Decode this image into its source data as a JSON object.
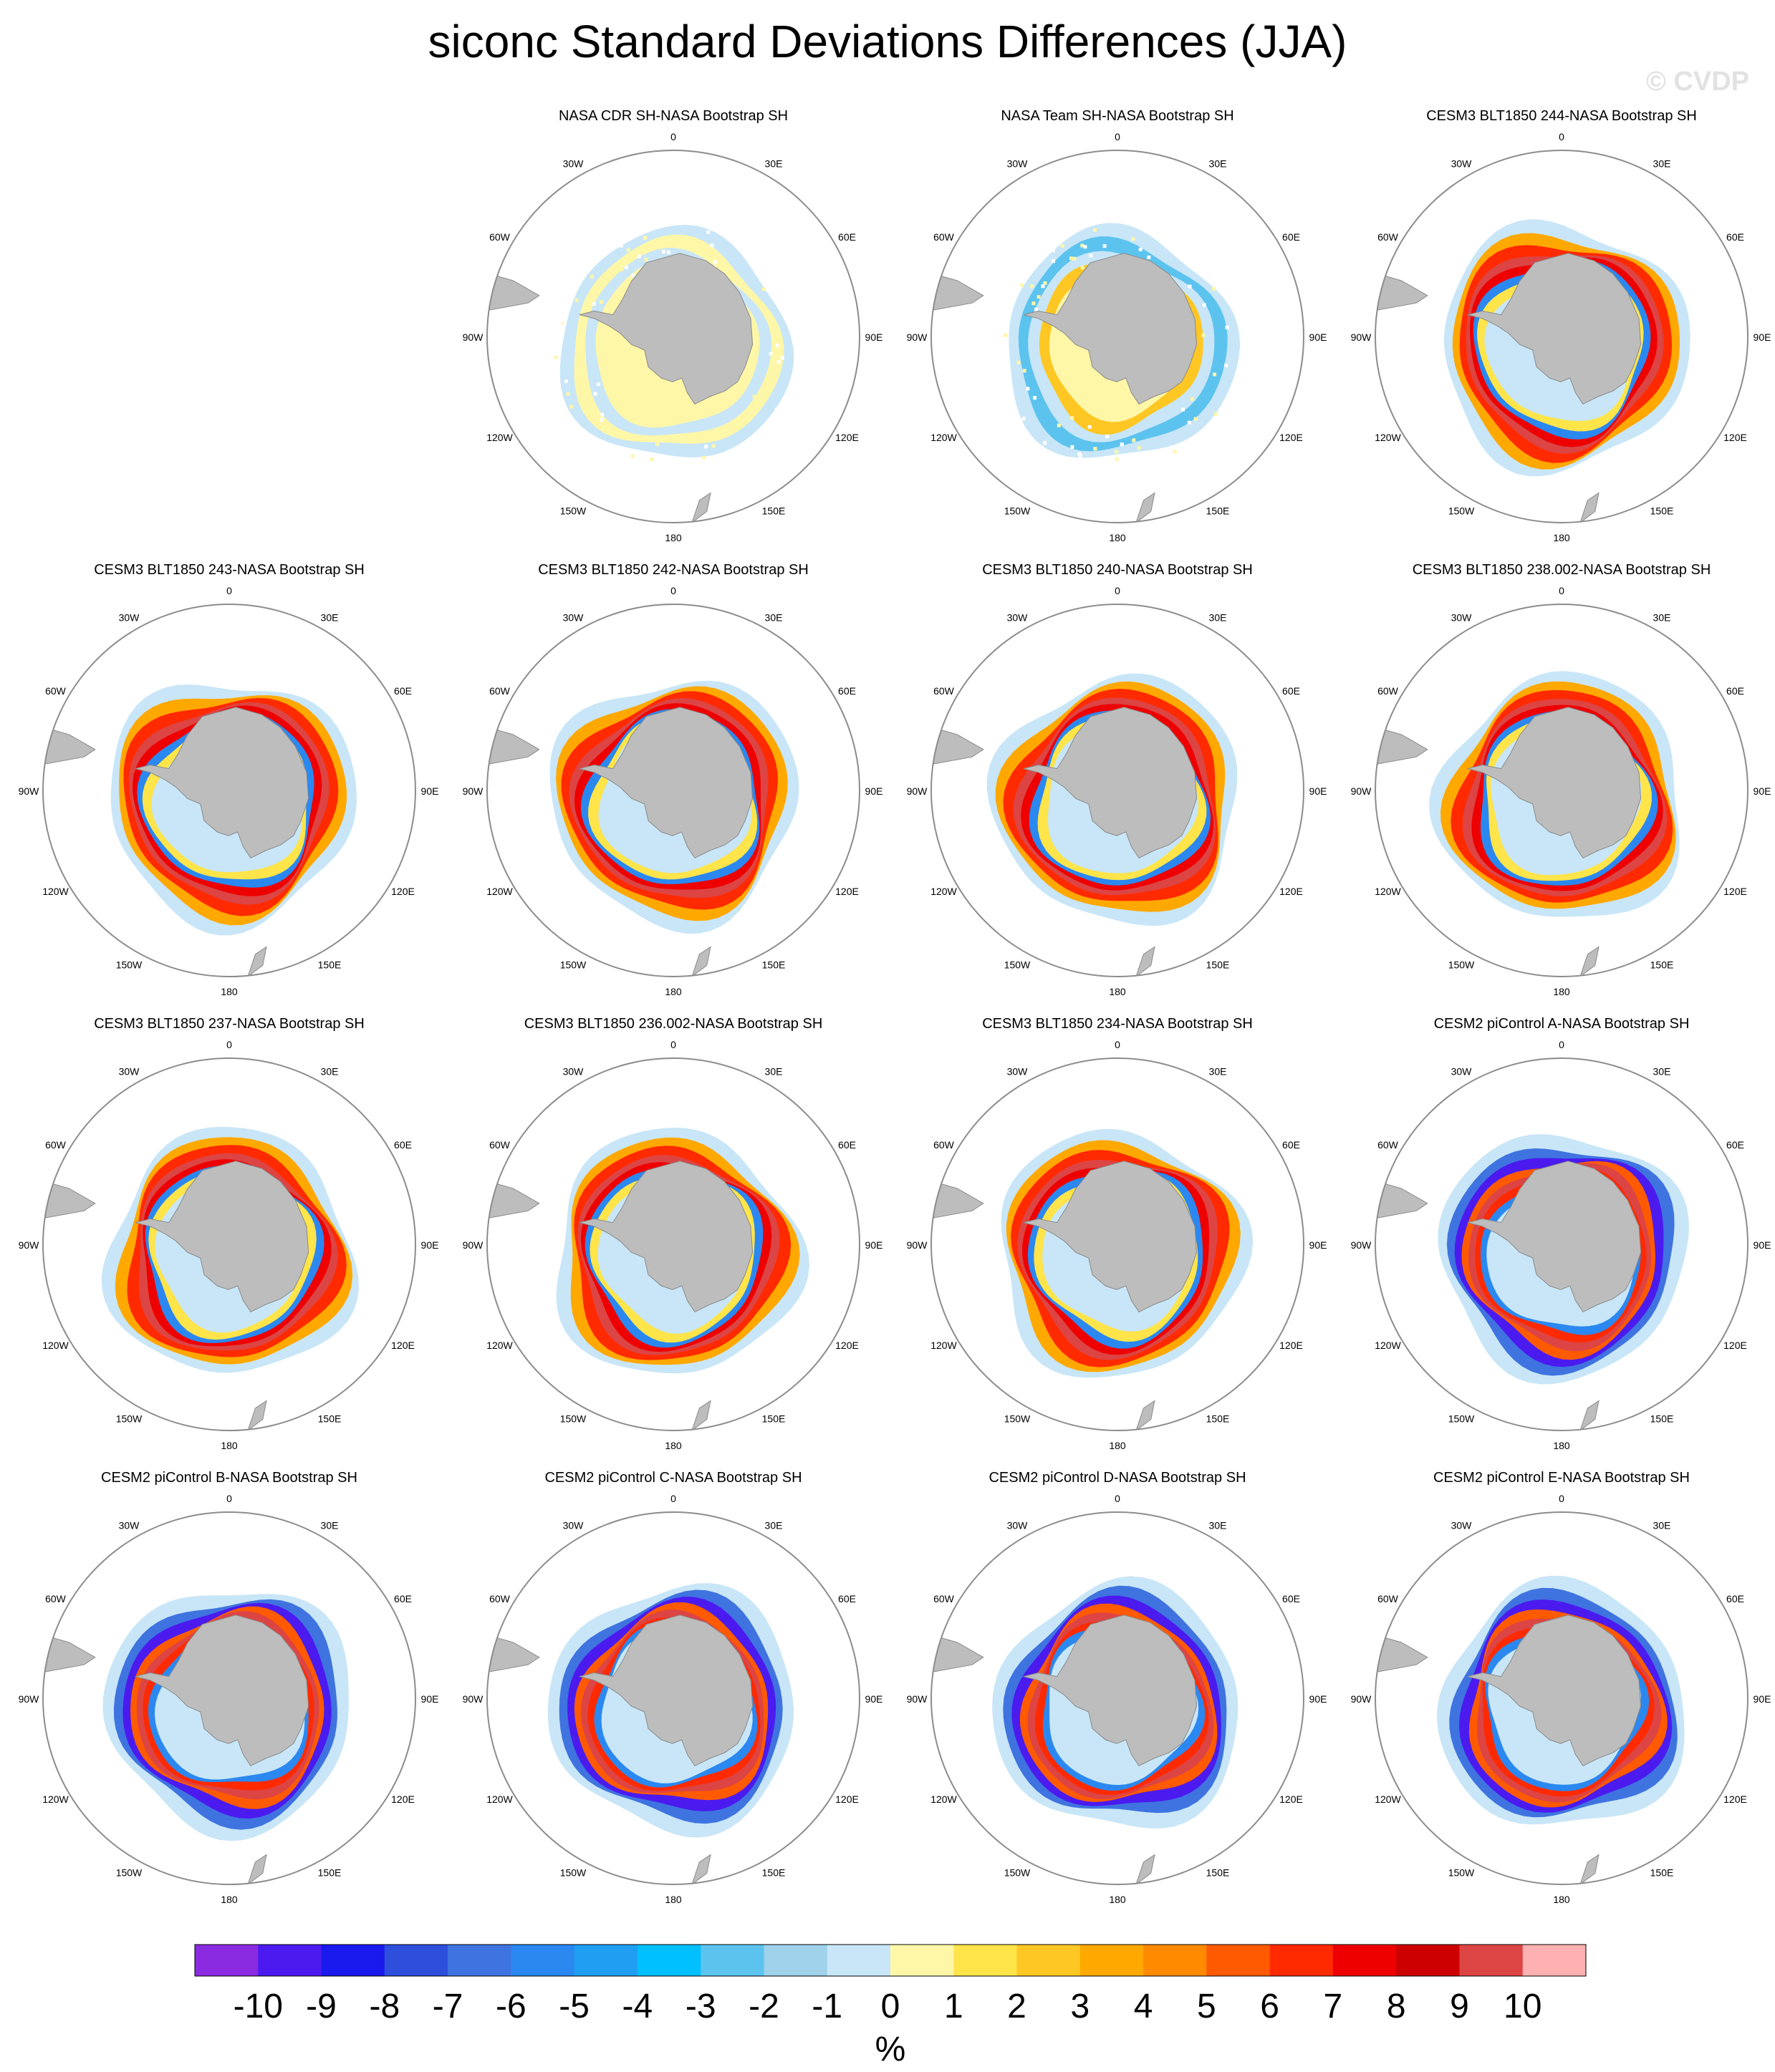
{
  "title": "siconc Standard Deviations Differences (JJA)",
  "watermark": "© CVDP",
  "colors": {
    "land": "#bdbdbd",
    "circle": "#8c8c8c"
  },
  "chart_data": {
    "type": "heatmap",
    "projection": "south-polar-stereographic",
    "variable": "siconc",
    "season": "JJA",
    "longitude_labels": [
      "0",
      "30E",
      "60E",
      "90E",
      "120E",
      "150E",
      "180",
      "150W",
      "120W",
      "90W",
      "60W",
      "30W"
    ],
    "colorbar": {
      "unit": "%",
      "tick_labels": [
        "-10",
        "-9",
        "-8",
        "-7",
        "-6",
        "-5",
        "-4",
        "-3",
        "-2",
        "-1",
        "0",
        "1",
        "2",
        "3",
        "4",
        "5",
        "6",
        "7",
        "8",
        "9",
        "10"
      ],
      "colors": [
        "#8a2be2",
        "#4b1aef",
        "#1a1aee",
        "#2e4fdc",
        "#3f73e0",
        "#2b88f0",
        "#1f9ef2",
        "#00bfff",
        "#5cc3ef",
        "#a0d2ec",
        "#c8e6f7",
        "#fff7a8",
        "#ffe44a",
        "#ffc724",
        "#ffa800",
        "#ff8a00",
        "#ff5a00",
        "#ff2a00",
        "#ee0000",
        "#cc0000",
        "#dd4444",
        "#ffb0b0"
      ]
    },
    "panels": [
      {
        "title": "NASA CDR SH-NASA Bootstrap SH",
        "pattern": "cdr"
      },
      {
        "title": "NASA Team SH-NASA Bootstrap SH",
        "pattern": "team"
      },
      {
        "title": "CESM3 BLT1850 244-NASA Bootstrap SH",
        "pattern": "model"
      },
      {
        "title": "CESM3 BLT1850 243-NASA Bootstrap SH",
        "pattern": "model"
      },
      {
        "title": "CESM3 BLT1850 242-NASA Bootstrap SH",
        "pattern": "model"
      },
      {
        "title": "CESM3 BLT1850 240-NASA Bootstrap SH",
        "pattern": "model"
      },
      {
        "title": "CESM3 BLT1850 238.002-NASA Bootstrap SH",
        "pattern": "model"
      },
      {
        "title": "CESM3 BLT1850 237-NASA Bootstrap SH",
        "pattern": "model"
      },
      {
        "title": "CESM3 BLT1850 236.002-NASA Bootstrap SH",
        "pattern": "model"
      },
      {
        "title": "CESM3 BLT1850 234-NASA Bootstrap SH",
        "pattern": "model"
      },
      {
        "title": "CESM2 piControl A-NASA Bootstrap SH",
        "pattern": "cesm2"
      },
      {
        "title": "CESM2 piControl B-NASA Bootstrap SH",
        "pattern": "cesm2"
      },
      {
        "title": "CESM2 piControl C-NASA Bootstrap SH",
        "pattern": "cesm2"
      },
      {
        "title": "CESM2 piControl D-NASA Bootstrap SH",
        "pattern": "cesm2"
      },
      {
        "title": "CESM2 piControl E-NASA Bootstrap SH",
        "pattern": "cesm2"
      }
    ]
  }
}
